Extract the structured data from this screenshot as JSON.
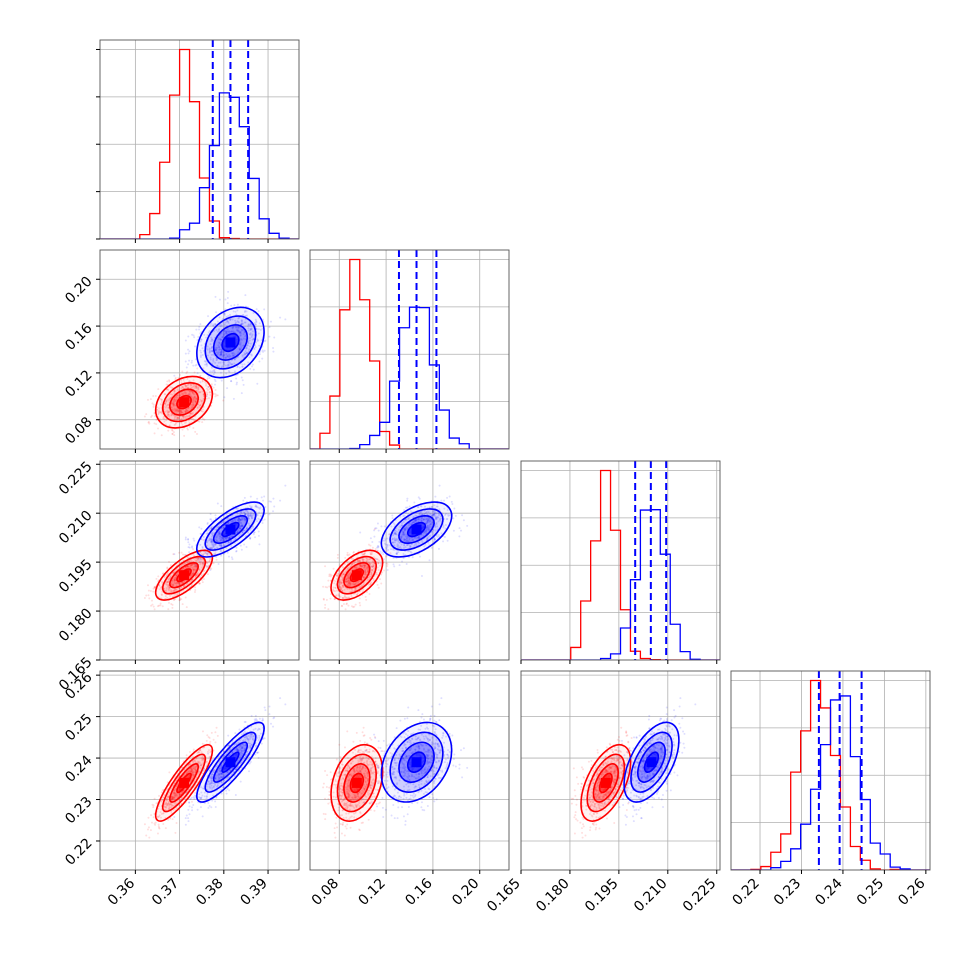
{
  "chart_data": {
    "type": "corner",
    "grid": true,
    "colors": {
      "series_a": "#ff0000",
      "series_b": "#0000ff"
    },
    "series": [
      {
        "color": "#ff0000",
        "means": [
          0.371,
          0.095,
          0.191,
          0.234
        ],
        "sds": [
          0.0032,
          0.011,
          0.0038,
          0.0046
        ],
        "corr": [
          [
            1,
            0.3,
            0.7,
            0.85
          ],
          [
            0.3,
            1,
            0.5,
            0.3
          ],
          [
            0.7,
            0.5,
            1,
            0.55
          ],
          [
            0.85,
            0.3,
            0.55,
            1
          ]
        ]
      },
      {
        "color": "#0000ff",
        "means": [
          0.3815,
          0.146,
          0.205,
          0.239
        ],
        "sds": [
          0.0038,
          0.015,
          0.0042,
          0.0048
        ],
        "corr": [
          [
            1,
            0.3,
            0.7,
            0.85
          ],
          [
            0.3,
            1,
            0.5,
            0.3
          ],
          [
            0.7,
            0.5,
            1,
            0.55
          ],
          [
            0.85,
            0.3,
            0.55,
            1
          ]
        ]
      }
    ],
    "quantile_lines": [
      [
        0.3775,
        0.3815,
        0.3855
      ],
      [
        0.131,
        0.146,
        0.163
      ],
      [
        0.2,
        0.2048,
        0.2095
      ],
      [
        0.2342,
        0.2392,
        0.2445
      ]
    ],
    "params": [
      {
        "range": [
          0.352,
          0.397
        ],
        "ticks": [
          "0.36",
          "0.37",
          "0.38",
          "0.39"
        ]
      },
      {
        "range": [
          0.055,
          0.225
        ],
        "ticks": [
          "0.08",
          "0.12",
          "0.16",
          "0.20"
        ]
      },
      {
        "range": [
          0.165,
          0.226
        ],
        "ticks": [
          "0.165",
          "0.180",
          "0.195",
          "0.210",
          "0.225"
        ]
      },
      {
        "range": [
          0.213,
          0.261
        ],
        "ticks": [
          "0.22",
          "0.23",
          "0.24",
          "0.25",
          "0.26"
        ]
      }
    ]
  }
}
